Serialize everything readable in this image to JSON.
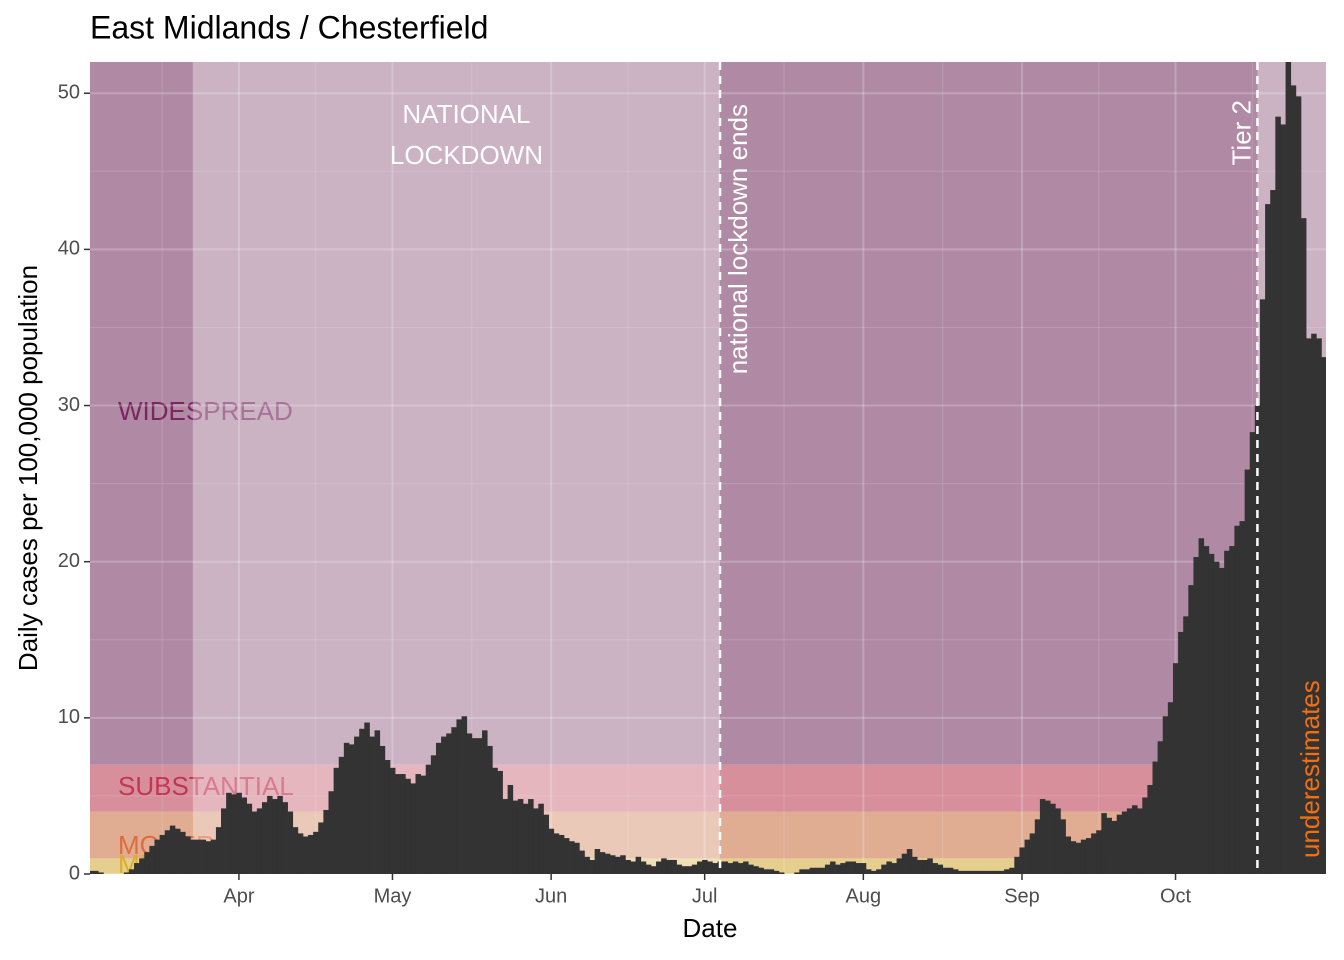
{
  "chart_data": {
    "type": "bar",
    "title": "East Midlands / Chesterfield",
    "xlabel": "Date",
    "ylabel": "Daily cases per 100,000 population",
    "color": "#333333",
    "xlim": [
      62.9,
      304.4
    ],
    "xticks": [
      {
        "value": 92,
        "label": "Apr"
      },
      {
        "value": 122,
        "label": "May"
      },
      {
        "value": 153,
        "label": "Jun"
      },
      {
        "value": 183,
        "label": "Jul"
      },
      {
        "value": 214,
        "label": "Aug"
      },
      {
        "value": 245,
        "label": "Sep"
      },
      {
        "value": 275,
        "label": "Oct"
      }
    ],
    "ylim": [
      0,
      52
    ],
    "yticks": [
      0,
      10,
      20,
      30,
      40,
      50
    ],
    "grid": true,
    "bands": [
      {
        "name": "MINIMAL",
        "from": 0,
        "to": 1,
        "color": "#e6cf8e",
        "label_color": "#dcae2a"
      },
      {
        "name": "MODERATE",
        "from": 1,
        "to": 4,
        "color": "#e0ad92",
        "label_color": "#de6c3c"
      },
      {
        "name": "SUBSTANTIAL",
        "from": 4,
        "to": 7,
        "color": "#d88f9c",
        "label_color": "#c23652"
      },
      {
        "name": "WIDESPREAD",
        "from": 7,
        "color": "#b08aa5",
        "label_color": "#7a2760"
      }
    ],
    "lockdown": {
      "label": [
        "NATIONAL",
        "LOCKDOWN"
      ],
      "from": 83,
      "to": 186
    },
    "events": [
      {
        "label": "national lockdown ends",
        "x": 186
      },
      {
        "label": "Tier 2",
        "x": 291
      }
    ],
    "underestimates": {
      "label": "underestimates",
      "from": 291
    },
    "x": [
      63,
      64,
      65,
      66,
      67,
      68,
      69,
      70,
      71,
      72,
      73,
      74,
      75,
      76,
      77,
      78,
      79,
      80,
      81,
      82,
      83,
      84,
      85,
      86,
      87,
      88,
      89,
      90,
      91,
      92,
      93,
      94,
      95,
      96,
      97,
      98,
      99,
      100,
      101,
      102,
      103,
      104,
      105,
      106,
      107,
      108,
      109,
      110,
      111,
      112,
      113,
      114,
      115,
      116,
      117,
      118,
      119,
      120,
      121,
      122,
      123,
      124,
      125,
      126,
      127,
      128,
      129,
      130,
      131,
      132,
      133,
      134,
      135,
      136,
      137,
      138,
      139,
      140,
      141,
      142,
      143,
      144,
      145,
      146,
      147,
      148,
      149,
      150,
      151,
      152,
      153,
      154,
      155,
      156,
      157,
      158,
      159,
      160,
      161,
      162,
      163,
      164,
      165,
      166,
      167,
      168,
      169,
      170,
      171,
      172,
      173,
      174,
      175,
      176,
      177,
      178,
      179,
      180,
      181,
      182,
      183,
      184,
      185,
      186,
      187,
      188,
      189,
      190,
      191,
      192,
      193,
      194,
      195,
      196,
      197,
      198,
      199,
      200,
      201,
      202,
      203,
      204,
      205,
      206,
      207,
      208,
      209,
      210,
      211,
      212,
      213,
      214,
      215,
      216,
      217,
      218,
      219,
      220,
      221,
      222,
      223,
      224,
      225,
      226,
      227,
      228,
      229,
      230,
      231,
      232,
      233,
      234,
      235,
      236,
      237,
      238,
      239,
      240,
      241,
      242,
      243,
      244,
      245,
      246,
      247,
      248,
      249,
      250,
      251,
      252,
      253,
      254,
      255,
      256,
      257,
      258,
      259,
      260,
      261,
      262,
      263,
      264,
      265,
      266,
      267,
      268,
      269,
      270,
      271,
      272,
      273,
      274,
      275,
      276,
      277,
      278,
      279,
      280,
      281,
      282,
      283,
      284,
      285,
      286,
      287,
      288,
      289,
      290,
      291,
      292,
      293,
      294,
      295,
      296,
      297,
      298,
      299,
      300,
      301,
      302,
      303,
      304
    ],
    "values": [
      0.2,
      0.2,
      0.1,
      0,
      0,
      0,
      0,
      0.1,
      0.3,
      0.7,
      1.0,
      1.4,
      1.8,
      2.2,
      2.5,
      2.8,
      3.1,
      2.9,
      2.7,
      2.4,
      2.2,
      2.2,
      2.2,
      2.1,
      2.2,
      3.0,
      4.2,
      5.2,
      5.1,
      5.2,
      4.9,
      4.5,
      4.0,
      4.2,
      4.6,
      5.0,
      4.8,
      5.0,
      4.6,
      4.0,
      3.0,
      2.6,
      2.4,
      2.5,
      2.7,
      3.3,
      4.1,
      5.3,
      6.8,
      7.5,
      8.4,
      8.3,
      8.8,
      9.3,
      9.7,
      8.8,
      9.2,
      8.2,
      7.3,
      6.8,
      6.4,
      6.4,
      6.1,
      5.8,
      6.4,
      6.3,
      7.0,
      7.6,
      8.4,
      8.8,
      9.0,
      9.4,
      9.9,
      10.1,
      9.0,
      8.7,
      8.7,
      9.2,
      8.2,
      6.8,
      6.6,
      4.8,
      5.7,
      4.7,
      4.8,
      4.5,
      4.8,
      4.2,
      4.5,
      3.8,
      2.9,
      2.6,
      2.5,
      2.3,
      2.1,
      2.0,
      1.5,
      1.1,
      0.9,
      1.6,
      1.4,
      1.3,
      1.2,
      1.1,
      1.2,
      0.9,
      0.8,
      1.1,
      0.8,
      0.6,
      0.5,
      0.8,
      1.0,
      0.9,
      0.9,
      0.6,
      0.5,
      0.5,
      0.6,
      0.8,
      0.9,
      0.8,
      0.7,
      0.8,
      0.8,
      0.7,
      0.8,
      0.7,
      0.8,
      0.6,
      0.5,
      0.4,
      0.3,
      0.3,
      0.2,
      0.1,
      0,
      0,
      0.1,
      0.3,
      0.3,
      0.4,
      0.4,
      0.4,
      0.6,
      0.8,
      0.6,
      0.7,
      0.8,
      0.8,
      0.7,
      0.7,
      0.3,
      0.2,
      0.3,
      0.6,
      0.8,
      0.7,
      1.0,
      1.3,
      1.6,
      1.1,
      0.9,
      0.9,
      1.0,
      0.7,
      0.6,
      0.4,
      0.4,
      0.3,
      0.2,
      0.2,
      0.2,
      0.2,
      0.2,
      0.2,
      0.2,
      0.2,
      0.2,
      0.3,
      0.4,
      1.1,
      1.7,
      2.2,
      2.6,
      3.5,
      4.8,
      4.7,
      4.5,
      4.2,
      3.5,
      2.4,
      2.1,
      2.0,
      2.2,
      2.3,
      2.6,
      2.8,
      3.9,
      3.6,
      3.4,
      3.8,
      4.0,
      4.2,
      4.4,
      4.2,
      4.9,
      5.7,
      7.2,
      8.5,
      10.1,
      11.0,
      13.5,
      15.5,
      16.5,
      18.5,
      20.3,
      21.5,
      21.0,
      20.5,
      20.0,
      19.6,
      20.7,
      21.0,
      22.3,
      22.6,
      25.9,
      28.3,
      30.0,
      36.8,
      42.9,
      43.8,
      48.5,
      48.0,
      52.0,
      50.5,
      49.8,
      42.0,
      34.3,
      34.6,
      34.3,
      33.1
    ]
  }
}
